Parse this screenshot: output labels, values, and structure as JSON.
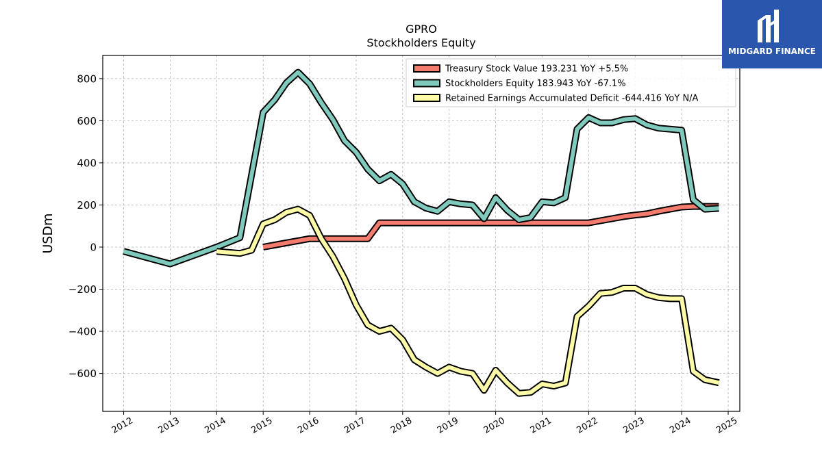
{
  "brand": {
    "name": "MIDGARD FINANCE",
    "color": "#2a57ad"
  },
  "chart_data": {
    "type": "line",
    "title": "GPRO",
    "subtitle": "Stockholders  Equity",
    "xlabel": "",
    "ylabel": "USDm",
    "xlim": [
      2011.55,
      2025.25
    ],
    "ylim": [
      -780,
      910
    ],
    "x_ticks": [
      2012,
      2013,
      2014,
      2015,
      2016,
      2017,
      2018,
      2019,
      2020,
      2021,
      2022,
      2023,
      2024,
      2025
    ],
    "x_tick_labels": [
      "2012",
      "2013",
      "2014",
      "2015",
      "2016",
      "2017",
      "2018",
      "2019",
      "2020",
      "2021",
      "2022",
      "2023",
      "2024",
      "2025"
    ],
    "y_ticks": [
      -600,
      -400,
      -200,
      0,
      200,
      400,
      600,
      800
    ],
    "y_tick_labels": [
      "−600",
      "−400",
      "−200",
      "0",
      "200",
      "400",
      "600",
      "800"
    ],
    "grid": true,
    "legend_position": "top-right",
    "series": [
      {
        "name": "Treasury Stock Value",
        "legend_label": "Treasury Stock Value  193.231 YoY +5.5%",
        "color": "#f47c6e",
        "x": [
          2015.0,
          2015.25,
          2015.5,
          2015.75,
          2016.0,
          2016.25,
          2016.5,
          2016.75,
          2017.0,
          2017.25,
          2017.5,
          2017.75,
          2018.0,
          2018.25,
          2018.5,
          2018.75,
          2019.0,
          2019.25,
          2019.5,
          2019.75,
          2020.0,
          2020.25,
          2020.5,
          2020.75,
          2021.0,
          2021.25,
          2021.5,
          2021.75,
          2022.0,
          2022.25,
          2022.5,
          2022.75,
          2023.0,
          2023.25,
          2023.5,
          2023.75,
          2024.0,
          2024.25,
          2024.5,
          2024.8
        ],
        "y": [
          0,
          10,
          20,
          30,
          40,
          40,
          40,
          40,
          40,
          40,
          115,
          115,
          115,
          115,
          115,
          115,
          115,
          115,
          115,
          115,
          115,
          115,
          115,
          115,
          115,
          115,
          115,
          115,
          115,
          125,
          135,
          145,
          152,
          158,
          170,
          180,
          190,
          193,
          193,
          193
        ]
      },
      {
        "name": "Stockholders Equity",
        "legend_label": "Stockholders Equity  183.943 YoY -67.1%",
        "color": "#7fcabd",
        "x": [
          2012.0,
          2013.0,
          2014.0,
          2014.5,
          2015.0,
          2015.25,
          2015.5,
          2015.75,
          2016.0,
          2016.25,
          2016.5,
          2016.75,
          2017.0,
          2017.25,
          2017.5,
          2017.75,
          2018.0,
          2018.25,
          2018.5,
          2018.75,
          2019.0,
          2019.25,
          2019.5,
          2019.75,
          2020.0,
          2020.25,
          2020.5,
          2020.75,
          2021.0,
          2021.25,
          2021.5,
          2021.75,
          2022.0,
          2022.25,
          2022.5,
          2022.75,
          2023.0,
          2023.25,
          2023.5,
          2023.75,
          2024.0,
          2024.25,
          2024.5,
          2024.8
        ],
        "y": [
          -20,
          -80,
          0,
          45,
          640,
          700,
          780,
          830,
          775,
          685,
          605,
          505,
          450,
          370,
          315,
          345,
          300,
          215,
          185,
          170,
          215,
          205,
          200,
          135,
          235,
          175,
          130,
          140,
          215,
          210,
          235,
          560,
          615,
          590,
          590,
          605,
          610,
          580,
          565,
          560,
          555,
          225,
          180,
          184
        ]
      },
      {
        "name": "Retained Earnings Accumulated Deficit",
        "legend_label": "Retained Earnings Accumulated Deficit  -644.416 YoY N/A",
        "color": "#fdfaa8",
        "x": [
          2014.0,
          2014.5,
          2014.75,
          2015.0,
          2015.25,
          2015.5,
          2015.75,
          2016.0,
          2016.25,
          2016.5,
          2016.75,
          2017.0,
          2017.25,
          2017.5,
          2017.75,
          2018.0,
          2018.25,
          2018.5,
          2018.75,
          2019.0,
          2019.25,
          2019.5,
          2019.75,
          2020.0,
          2020.25,
          2020.5,
          2020.75,
          2021.0,
          2021.25,
          2021.5,
          2021.75,
          2022.0,
          2022.25,
          2022.5,
          2022.75,
          2023.0,
          2023.25,
          2023.5,
          2023.75,
          2024.0,
          2024.25,
          2024.5,
          2024.8
        ],
        "y": [
          -20,
          -30,
          -15,
          110,
          130,
          165,
          180,
          150,
          40,
          -45,
          -150,
          -275,
          -370,
          -400,
          -385,
          -440,
          -535,
          -570,
          -600,
          -570,
          -590,
          -600,
          -680,
          -585,
          -645,
          -695,
          -690,
          -650,
          -660,
          -645,
          -330,
          -280,
          -220,
          -215,
          -195,
          -195,
          -225,
          -240,
          -245,
          -245,
          -590,
          -630,
          -644
        ]
      }
    ]
  }
}
